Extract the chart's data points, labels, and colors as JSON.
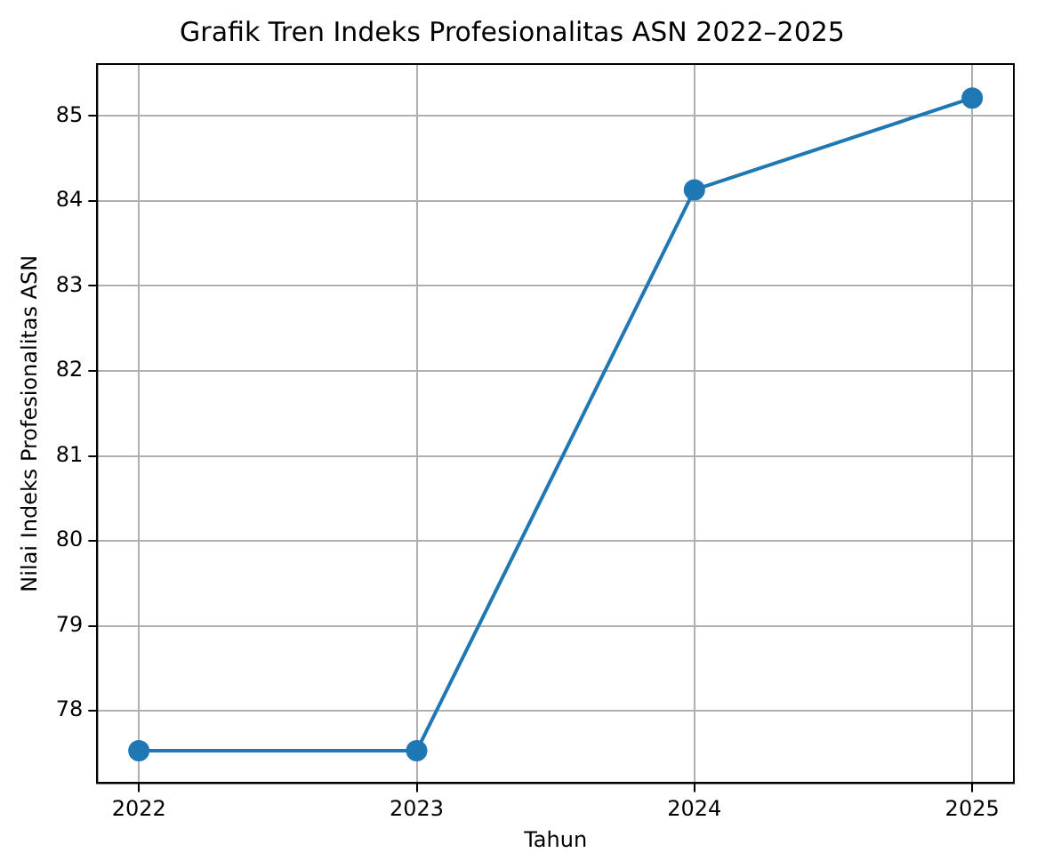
{
  "chart_data": {
    "type": "line",
    "title": "Grafik Tren Indeks Profesionalitas ASN 2022–2025",
    "xlabel": "Tahun",
    "ylabel": "Nilai Indeks Profesionalitas ASN",
    "x": [
      2022,
      2023,
      2024,
      2025
    ],
    "series": [
      {
        "color": "#1f77b4",
        "values": [
          77.53,
          77.53,
          84.13,
          85.21
        ]
      }
    ],
    "xlim": [
      2021.85,
      2025.15
    ],
    "xticks": [
      2022,
      2023,
      2024,
      2025
    ],
    "ylim": [
      77.15,
      85.61
    ],
    "yticks": [
      78,
      79,
      80,
      81,
      82,
      83,
      84,
      85
    ],
    "grid": true,
    "marker": "circle",
    "line_style": "solid",
    "legend": false
  }
}
